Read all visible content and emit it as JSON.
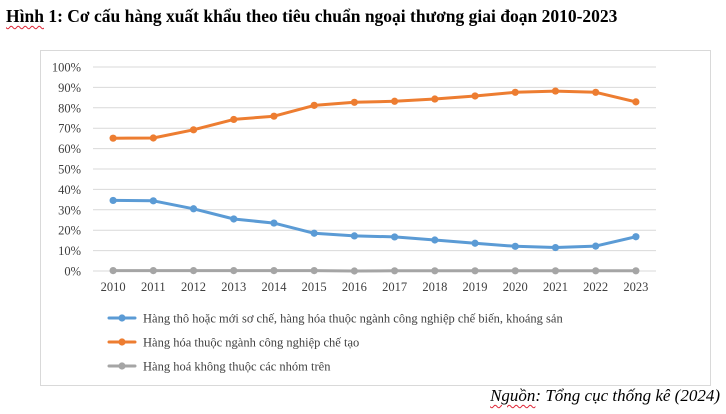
{
  "title": {
    "prefix": "Hình",
    "rest": " 1: Cơ cấu hàng xuất khẩu theo tiêu chuẩn ngoại thương giai đoạn 2010-2023"
  },
  "source": {
    "word1": "Nguồn",
    "rest": ": Tổng cục thống kê (2024)"
  },
  "colors": {
    "series1": "#5b9bd5",
    "series2": "#ed7d31",
    "series3": "#a5a5a5",
    "grid": "#d9d9d9",
    "text": "#404040"
  },
  "chart_data": {
    "type": "line",
    "title": "",
    "xlabel": "",
    "ylabel": "",
    "ylim": [
      0,
      100
    ],
    "y_ticks": [
      "0%",
      "10%",
      "20%",
      "30%",
      "40%",
      "50%",
      "60%",
      "70%",
      "80%",
      "90%",
      "100%"
    ],
    "grid": true,
    "legend_position": "bottom",
    "x": [
      "2010",
      "2011",
      "2012",
      "2013",
      "2014",
      "2015",
      "2016",
      "2017",
      "2018",
      "2019",
      "2020",
      "2021",
      "2022",
      "2023"
    ],
    "series": [
      {
        "name": "Hàng thô hoặc mới sơ chế, hàng hóa thuộc ngành công nghiệp chế biến, khoáng sản",
        "values": [
          34.6,
          34.4,
          30.5,
          25.5,
          23.5,
          18.5,
          17.2,
          16.7,
          15.2,
          13.6,
          12.1,
          11.5,
          12.2,
          16.8
        ]
      },
      {
        "name": "Hàng hóa thuộc ngành công nghiệp chế tạo",
        "values": [
          65.1,
          65.2,
          69.2,
          74.3,
          75.9,
          81.2,
          82.7,
          83.2,
          84.3,
          85.8,
          87.6,
          88.2,
          87.6,
          82.9
        ]
      },
      {
        "name": "Hàng hoá không thuộc các nhóm trên",
        "values": [
          0.2,
          0.2,
          0.2,
          0.2,
          0.2,
          0.2,
          0.0,
          0.1,
          0.1,
          0.1,
          0.1,
          0.1,
          0.1,
          0.1
        ]
      }
    ]
  }
}
